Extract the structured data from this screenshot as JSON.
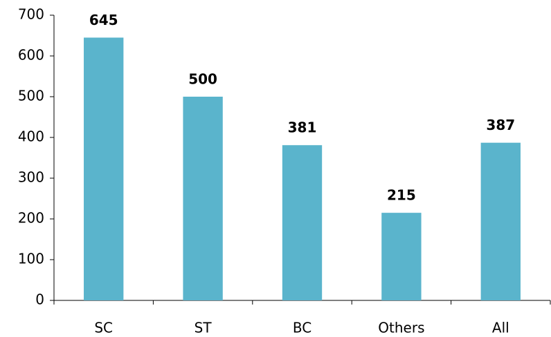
{
  "chart_data": {
    "type": "bar",
    "categories": [
      "SC",
      "ST",
      "BC",
      "Others",
      "All"
    ],
    "values": [
      645,
      500,
      381,
      215,
      387
    ],
    "color": "#5ab4cc",
    "ylim": [
      0,
      700
    ],
    "yticks": [
      0,
      100,
      200,
      300,
      400,
      500,
      600,
      700
    ],
    "grid": false
  }
}
